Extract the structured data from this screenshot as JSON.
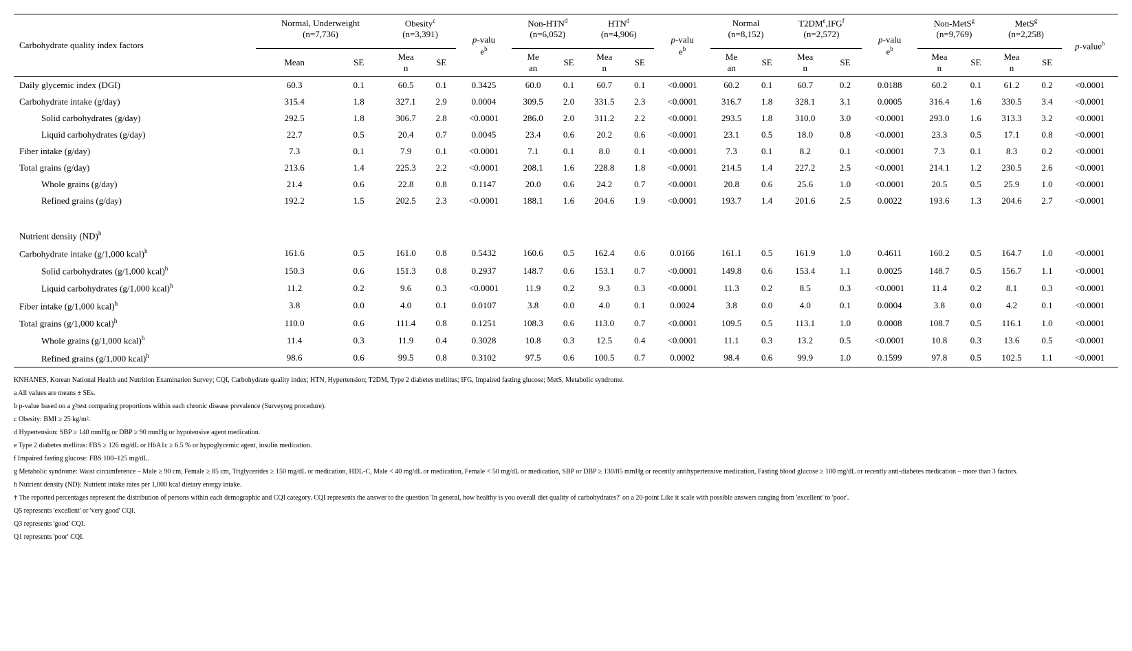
{
  "header": {
    "factor_label": "Carbohydrate quality index factors",
    "groups": [
      {
        "key": "g0",
        "title": "Normal, Underweight",
        "n": "(n=7,736)"
      },
      {
        "key": "g1",
        "title": "Obesity",
        "sup": "c",
        "n": "(n=3,391)"
      },
      {
        "key": "p0",
        "title": "p-value",
        "sup": "b"
      },
      {
        "key": "g2",
        "title": "Non-HTN",
        "sup": "d",
        "n": "(n=6,052)"
      },
      {
        "key": "g3",
        "title": "HTN",
        "sup": "d",
        "n": "(n=4,906)"
      },
      {
        "key": "p1",
        "title": "p-value",
        "sup": "b"
      },
      {
        "key": "g4",
        "title": "Normal",
        "n": "(n=8,152)"
      },
      {
        "key": "g5",
        "title": "T2DM",
        "sup": "e",
        ",IFG": "f",
        "n": "(n=2,572)",
        "title2": ",IFG",
        "sup2": "f"
      },
      {
        "key": "p2",
        "title": "p-value",
        "sup": "b"
      },
      {
        "key": "g6",
        "title": "Non-MetS",
        "sup": "g",
        "n": "(n=9,769)"
      },
      {
        "key": "g7",
        "title": "MetS",
        "sup": "g",
        "n": "(n=2,258)"
      },
      {
        "key": "p3",
        "title": "p-value",
        "sup": "b"
      }
    ],
    "sub_mean": "Mean",
    "sub_se": "SE",
    "sub_mean_wrap": "Mea n",
    "sub_mean_wrap2": "Me an"
  },
  "rows": [
    {
      "label": "Daily glycemic index (DGI)",
      "indent": 0,
      "cells": [
        "60.3",
        "0.1",
        "60.5",
        "0.1",
        "0.3425",
        "60.0",
        "0.1",
        "60.7",
        "0.1",
        "<0.0001",
        "60.2",
        "0.1",
        "60.7",
        "0.2",
        "0.0188",
        "60.2",
        "0.1",
        "61.2",
        "0.2",
        "<0.0001"
      ]
    },
    {
      "label": "Carbohydrate intake (g/day)",
      "indent": 0,
      "cells": [
        "315.4",
        "1.8",
        "327.1",
        "2.9",
        "0.0004",
        "309.5",
        "2.0",
        "331.5",
        "2.3",
        "<0.0001",
        "316.7",
        "1.8",
        "328.1",
        "3.1",
        "0.0005",
        "316.4",
        "1.6",
        "330.5",
        "3.4",
        "<0.0001"
      ]
    },
    {
      "label": "Solid carbohydrates (g/day)",
      "indent": 1,
      "cells": [
        "292.5",
        "1.8",
        "306.7",
        "2.8",
        "<0.0001",
        "286.0",
        "2.0",
        "311.2",
        "2.2",
        "<0.0001",
        "293.5",
        "1.8",
        "310.0",
        "3.0",
        "<0.0001",
        "293.0",
        "1.6",
        "313.3",
        "3.2",
        "<0.0001"
      ]
    },
    {
      "label": "Liquid carbohydrates (g/day)",
      "indent": 1,
      "cells": [
        "22.7",
        "0.5",
        "20.4",
        "0.7",
        "0.0045",
        "23.4",
        "0.6",
        "20.2",
        "0.6",
        "<0.0001",
        "23.1",
        "0.5",
        "18.0",
        "0.8",
        "<0.0001",
        "23.3",
        "0.5",
        "17.1",
        "0.8",
        "<0.0001"
      ]
    },
    {
      "label": "Fiber intake (g/day)",
      "indent": 0,
      "cells": [
        "7.3",
        "0.1",
        "7.9",
        "0.1",
        "<0.0001",
        "7.1",
        "0.1",
        "8.0",
        "0.1",
        "<0.0001",
        "7.3",
        "0.1",
        "8.2",
        "0.1",
        "<0.0001",
        "7.3",
        "0.1",
        "8.3",
        "0.2",
        "<0.0001"
      ]
    },
    {
      "label": "Total grains (g/day)",
      "indent": 0,
      "cells": [
        "213.6",
        "1.4",
        "225.3",
        "2.2",
        "<0.0001",
        "208.1",
        "1.6",
        "228.8",
        "1.8",
        "<0.0001",
        "214.5",
        "1.4",
        "227.2",
        "2.5",
        "<0.0001",
        "214.1",
        "1.2",
        "230.5",
        "2.6",
        "<0.0001"
      ]
    },
    {
      "label": "Whole grains (g/day)",
      "indent": 1,
      "cells": [
        "21.4",
        "0.6",
        "22.8",
        "0.8",
        "0.1147",
        "20.0",
        "0.6",
        "24.2",
        "0.7",
        "<0.0001",
        "20.8",
        "0.6",
        "25.6",
        "1.0",
        "<0.0001",
        "20.5",
        "0.5",
        "25.9",
        "1.0",
        "<0.0001"
      ]
    },
    {
      "label": "Refined grains (g/day)",
      "indent": 1,
      "cells": [
        "192.2",
        "1.5",
        "202.5",
        "2.3",
        "<0.0001",
        "188.1",
        "1.6",
        "204.6",
        "1.9",
        "<0.0001",
        "193.7",
        "1.4",
        "201.6",
        "2.5",
        "0.0022",
        "193.6",
        "1.3",
        "204.6",
        "2.7",
        "<0.0001"
      ]
    }
  ],
  "section2_label": "Nutrient density (ND)",
  "section2_sup": "h",
  "rows2": [
    {
      "label": "Carbohydrate intake (g/1,000 kcal)",
      "sup": "h",
      "indent": 0,
      "cells": [
        "161.6",
        "0.5",
        "161.0",
        "0.8",
        "0.5432",
        "160.6",
        "0.5",
        "162.4",
        "0.6",
        "0.0166",
        "161.1",
        "0.5",
        "161.9",
        "1.0",
        "0.4611",
        "160.2",
        "0.5",
        "164.7",
        "1.0",
        "<0.0001"
      ]
    },
    {
      "label": "Solid carbohydrates (g/1,000 kcal)",
      "sup": "h",
      "indent": 1,
      "cells": [
        "150.3",
        "0.6",
        "151.3",
        "0.8",
        "0.2937",
        "148.7",
        "0.6",
        "153.1",
        "0.7",
        "<0.0001",
        "149.8",
        "0.6",
        "153.4",
        "1.1",
        "0.0025",
        "148.7",
        "0.5",
        "156.7",
        "1.1",
        "<0.0001"
      ]
    },
    {
      "label": "Liquid carbohydrates (g/1,000 kcal)",
      "sup": "h",
      "indent": 1,
      "cells": [
        "11.2",
        "0.2",
        "9.6",
        "0.3",
        "<0.0001",
        "11.9",
        "0.2",
        "9.3",
        "0.3",
        "<0.0001",
        "11.3",
        "0.2",
        "8.5",
        "0.3",
        "<0.0001",
        "11.4",
        "0.2",
        "8.1",
        "0.3",
        "<0.0001"
      ]
    },
    {
      "label": "Fiber intake (g/1,000 kcal)",
      "sup": "h",
      "indent": 0,
      "cells": [
        "3.8",
        "0.0",
        "4.0",
        "0.1",
        "0.0107",
        "3.8",
        "0.0",
        "4.0",
        "0.1",
        "0.0024",
        "3.8",
        "0.0",
        "4.0",
        "0.1",
        "0.0004",
        "3.8",
        "0.0",
        "4.2",
        "0.1",
        "<0.0001"
      ]
    },
    {
      "label": "Total grains (g/1,000 kcal)",
      "sup": "h",
      "indent": 0,
      "cells": [
        "110.0",
        "0.6",
        "111.4",
        "0.8",
        "0.1251",
        "108.3",
        "0.6",
        "113.0",
        "0.7",
        "<0.0001",
        "109.5",
        "0.5",
        "113.1",
        "1.0",
        "0.0008",
        "108.7",
        "0.5",
        "116.1",
        "1.0",
        "<0.0001"
      ]
    },
    {
      "label": "Whole grains (g/1,000 kcal)",
      "sup": "h",
      "indent": 1,
      "cells": [
        "11.4",
        "0.3",
        "11.9",
        "0.4",
        "0.3028",
        "10.8",
        "0.3",
        "12.5",
        "0.4",
        "<0.0001",
        "11.1",
        "0.3",
        "13.2",
        "0.5",
        "<0.0001",
        "10.8",
        "0.3",
        "13.6",
        "0.5",
        "<0.0001"
      ]
    },
    {
      "label": "Refined grains (g/1,000 kcal)",
      "sup": "h",
      "indent": 1,
      "cells": [
        "98.6",
        "0.6",
        "99.5",
        "0.8",
        "0.3102",
        "97.5",
        "0.6",
        "100.5",
        "0.7",
        "0.0002",
        "98.4",
        "0.6",
        "99.9",
        "1.0",
        "0.1599",
        "97.8",
        "0.5",
        "102.5",
        "1.1",
        "<0.0001"
      ]
    }
  ],
  "footnotes": [
    "KNHANES, Korean  National Health and Nutrition Examination Survey; CQI, Carbohydrate quality  index; HTN, Hypertension; T2DM, Type 2 diabetes mellitus; IFG, Impaired  fasting glucose; MetS, Metabolic syndrome.",
    "a All values are  means ± SEs.",
    "b p-value based on a χ²test comparing proportions within each chronic disease prevalence (Surveyreg procedure).",
    "c Obesity: BMI ≥ 25 kg/m².",
    "d Hypertension: SBP ≥ 140 mmHg or DBP ≥ 90 mmHg or  hypotensive agent medication.",
    "e Type 2 diabetes  mellitus: FBS ≥ 126  mg/dL or HbA1c ≥ 6.5 % or hypoglycemic agent, insulin medication.",
    "f Impaired fasting  glucose: FBS 100–125 mg/dL.",
    "g Metabolic syndrome:  Waist circumference – Male ≥ 90 cm, Female ≥ 85 cm, Triglycerides ≥ 150 mg/dL or medication, HDL-C, Male < 40 mg/dL or medication, Female  < 50 mg/dL or medication, SBP or DBP ≥ 130/85 mmHg or recently  antihypertensive medication, Fasting blood glucose ≥ 100 mg/dL or  recently anti-diabetes medication – more than 3 factors.",
    "h Nutrient density  (ND): Nutrient intake rates per 1,000 kcal dietary energy intake.",
    "† The reported  percentages represent the distribution of persons within each demographic and  CQI category. CQI represents the answer to the question 'In general, how  healthy is you overall diet quality of carbohydrates?' on a 20-point Like it  scale with possible answers ranging from 'excellent' to 'poor'.",
    "Q5 represents  'excellent' or 'very good' CQI.",
    "Q3 represents 'good'  CQI.",
    "Q1 represents 'poor'  CQI."
  ]
}
